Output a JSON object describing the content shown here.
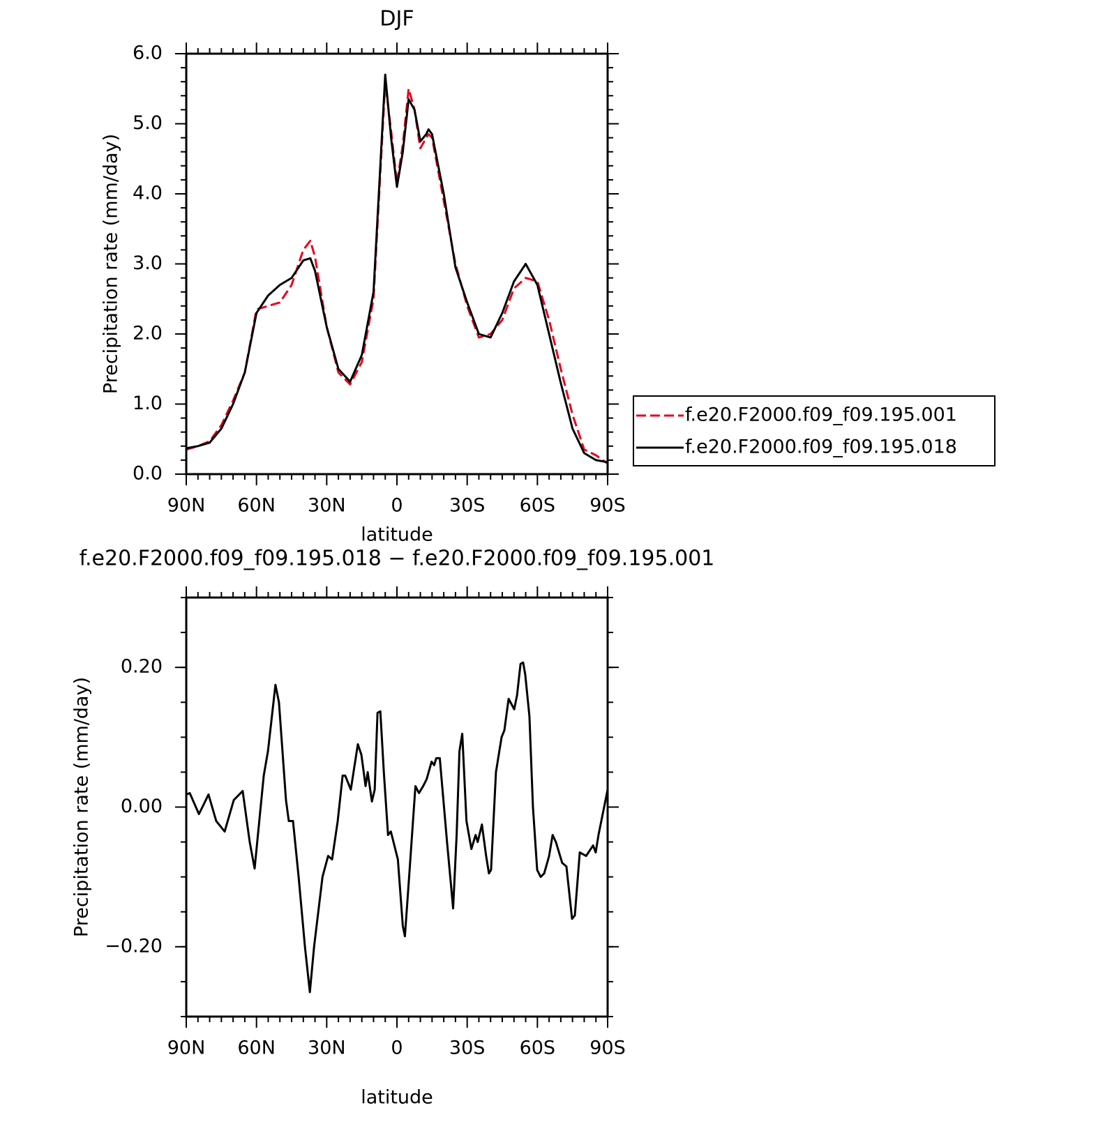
{
  "chart_data": [
    {
      "type": "line",
      "title": "DJF",
      "xlabel": "latitude",
      "ylabel": "Precipitation rate (mm/day)",
      "x": [
        90,
        85,
        80,
        75,
        70,
        65,
        60,
        55,
        50,
        45,
        40,
        37,
        35,
        30,
        25,
        20,
        15,
        10,
        5,
        2.5,
        0,
        -2.5,
        -5,
        -7.5,
        -10,
        -12.5,
        -13.5,
        -15,
        -20,
        -25,
        -30,
        -35,
        -40,
        -45,
        -50,
        -55,
        -60,
        -65,
        -70,
        -75,
        -80,
        -85,
        -90
      ],
      "series": [
        {
          "name": "f.e20.F2000.f09_f09.195.001",
          "color": "#e8001c",
          "linestyle": "dashed",
          "values": [
            0.35,
            0.4,
            0.47,
            0.7,
            1.05,
            1.45,
            2.35,
            2.4,
            2.45,
            2.7,
            3.2,
            3.33,
            3.1,
            2.1,
            1.45,
            1.28,
            1.6,
            2.5,
            5.6,
            4.9,
            4.15,
            4.7,
            5.5,
            5.2,
            4.65,
            4.8,
            4.85,
            4.8,
            3.9,
            3.0,
            2.4,
            1.95,
            2.0,
            2.2,
            2.65,
            2.8,
            2.75,
            2.2,
            1.5,
            0.85,
            0.35,
            0.27,
            0.15
          ]
        },
        {
          "name": "f.e20.F2000.f09_f09.195.018",
          "color": "#000000",
          "linestyle": "solid",
          "values": [
            0.37,
            0.4,
            0.45,
            0.65,
            1.0,
            1.45,
            2.3,
            2.55,
            2.7,
            2.8,
            3.05,
            3.08,
            2.9,
            2.1,
            1.5,
            1.32,
            1.7,
            2.6,
            5.7,
            4.8,
            4.1,
            4.6,
            5.35,
            5.2,
            4.75,
            4.85,
            4.92,
            4.85,
            4.0,
            2.95,
            2.45,
            2.0,
            1.95,
            2.3,
            2.75,
            3.0,
            2.7,
            2.0,
            1.3,
            0.65,
            0.3,
            0.2,
            0.17
          ]
        }
      ],
      "xlim": [
        90,
        -90
      ],
      "xticks": [
        {
          "value": 90,
          "label": "90N"
        },
        {
          "value": 60,
          "label": "60N"
        },
        {
          "value": 30,
          "label": "30N"
        },
        0,
        {
          "value": -30,
          "label": "30S"
        },
        {
          "value": -60,
          "label": "60S"
        },
        {
          "value": -90,
          "label": "90S"
        }
      ],
      "ylim": [
        0,
        6
      ],
      "yticks": [
        {
          "value": 0,
          "label": "0.0"
        },
        {
          "value": 1,
          "label": "1.0"
        },
        {
          "value": 2,
          "label": "2.0"
        },
        {
          "value": 3,
          "label": "3.0"
        },
        {
          "value": 4,
          "label": "4.0"
        },
        {
          "value": 5,
          "label": "5.0"
        },
        {
          "value": 6,
          "label": "6.0"
        }
      ],
      "grid": false,
      "legend": "right"
    },
    {
      "type": "line",
      "title": "f.e20.F2000.f09_f09.195.018 − f.e20.F2000.f09_f09.195.001",
      "xlabel": "latitude",
      "ylabel": "Precipitation rate (mm/day)",
      "x": [
        90.0,
        88.5,
        84.6,
        83.1,
        80.5,
        77.2,
        73.6,
        69.7,
        65.9,
        62.9,
        60.8,
        56.9,
        55.1,
        51.9,
        50.4,
        47.4,
        46.2,
        44.4,
        42.0,
        39.3,
        37.2,
        35.4,
        31.8,
        29.4,
        27.7,
        25.3,
        23.2,
        22.1,
        19.7,
        16.7,
        15.2,
        13.4,
        12.5,
        10.7,
        9.5,
        8.3,
        7.1,
        5.6,
        3.8,
        2.6,
        -0.4,
        -2.5,
        -3.4,
        -5.2,
        -7.9,
        -9.4,
        -11.2,
        -12.7,
        -14.8,
        -15.9,
        -16.8,
        -18.3,
        -21.4,
        -24.0,
        -25.5,
        -26.7,
        -27.9,
        -29.7,
        -31.8,
        -33.6,
        -34.5,
        -36.3,
        -38.1,
        -39.3,
        -40.2,
        -42.3,
        -44.7,
        -45.9,
        -47.7,
        -50.1,
        -51.3,
        -52.8,
        -53.9,
        -54.8,
        -56.6,
        -58.1,
        -59.9,
        -61.4,
        -62.9,
        -65.0,
        -66.5,
        -67.9,
        -70.6,
        -72.4,
        -74.8,
        -76.0,
        -78.1,
        -80.8,
        -83.8,
        -84.9,
        -86.1,
        -88.5,
        -90.0
      ],
      "series": [
        {
          "color": "#000000",
          "linestyle": "solid",
          "values": [
            0.018,
            0.02,
            -0.01,
            0.0,
            0.018,
            -0.02,
            -0.035,
            0.01,
            0.023,
            -0.05,
            -0.088,
            0.045,
            0.08,
            0.175,
            0.15,
            0.01,
            -0.02,
            -0.02,
            -0.1,
            -0.2,
            -0.265,
            -0.2,
            -0.1,
            -0.07,
            -0.075,
            -0.02,
            0.045,
            0.045,
            0.025,
            0.09,
            0.075,
            0.03,
            0.05,
            0.008,
            0.025,
            0.135,
            0.137,
            0.05,
            -0.04,
            -0.035,
            -0.075,
            -0.17,
            -0.185,
            -0.1,
            0.03,
            0.02,
            0.03,
            0.04,
            0.065,
            0.06,
            0.07,
            0.07,
            -0.05,
            -0.145,
            -0.04,
            0.08,
            0.105,
            -0.02,
            -0.06,
            -0.04,
            -0.05,
            -0.025,
            -0.07,
            -0.095,
            -0.09,
            0.05,
            0.1,
            0.11,
            0.155,
            0.14,
            0.16,
            0.205,
            0.207,
            0.19,
            0.13,
            0.0,
            -0.09,
            -0.1,
            -0.095,
            -0.07,
            -0.04,
            -0.05,
            -0.08,
            -0.085,
            -0.16,
            -0.155,
            -0.065,
            -0.07,
            -0.055,
            -0.065,
            -0.04,
            0.0,
            0.025
          ]
        }
      ],
      "xlim": [
        90,
        -90
      ],
      "xticks": [
        {
          "value": 90,
          "label": "90N"
        },
        {
          "value": 60,
          "label": "60N"
        },
        {
          "value": 30,
          "label": "30N"
        },
        0,
        {
          "value": -30,
          "label": "30S"
        },
        {
          "value": -60,
          "label": "60S"
        },
        {
          "value": -90,
          "label": "90S"
        }
      ],
      "ylim": [
        -0.3,
        0.3
      ],
      "yticks": [
        {
          "value": -0.2,
          "label": "−0.20"
        },
        {
          "value": 0,
          "label": "0.00"
        },
        {
          "value": 0.2,
          "label": "0.20"
        }
      ],
      "grid": false
    }
  ]
}
